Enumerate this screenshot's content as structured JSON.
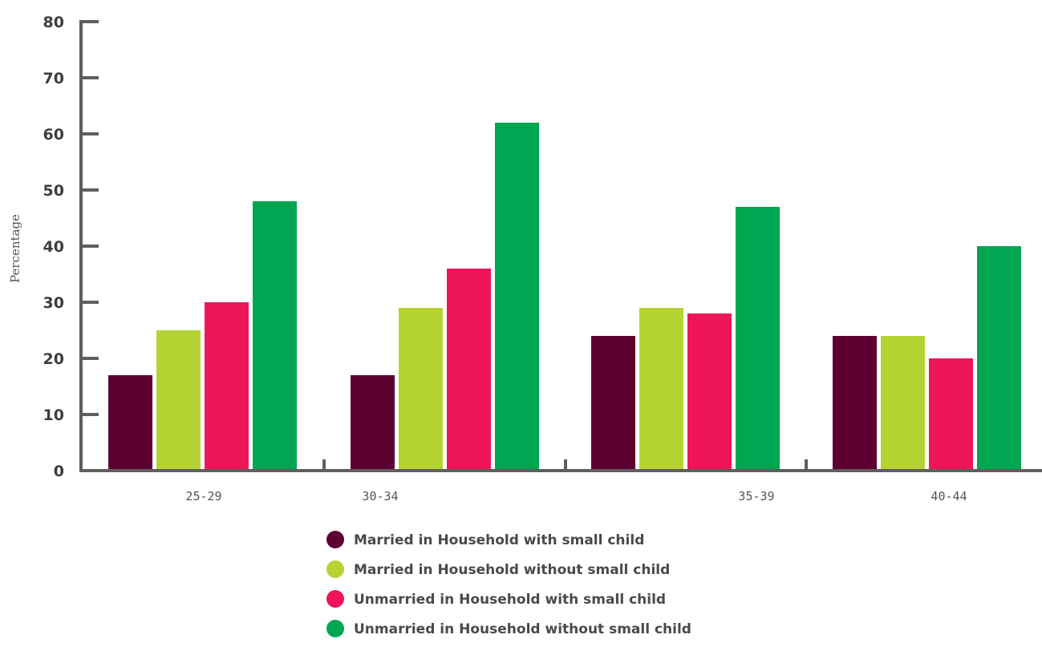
{
  "chart_data": {
    "type": "bar",
    "title": "",
    "xlabel": "",
    "ylabel": "Percentage",
    "ylim": [
      0,
      80
    ],
    "yticks": [
      0,
      10,
      20,
      30,
      40,
      50,
      60,
      70,
      80
    ],
    "grid": false,
    "legend_position": "bottom",
    "categories": [
      "25-29",
      "30-34",
      "35-39",
      "40-44"
    ],
    "series": [
      {
        "name": "Married in Household with small child",
        "color": "#5c0032",
        "values": [
          17,
          17,
          24,
          24
        ]
      },
      {
        "name": "Married in Household without small child",
        "color": "#b6d334",
        "values": [
          25,
          29,
          29,
          24
        ]
      },
      {
        "name": "Unmarried in Household with small child",
        "color": "#ee1559",
        "values": [
          30,
          36,
          28,
          20
        ]
      },
      {
        "name": "Unmarried in Household without small child",
        "color": "#00a651",
        "values": [
          48,
          62,
          47,
          40
        ]
      }
    ]
  }
}
